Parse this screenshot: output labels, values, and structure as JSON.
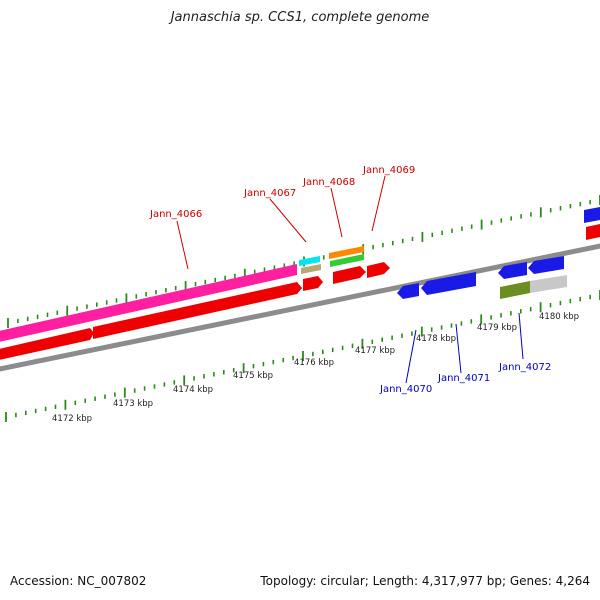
{
  "title": "Jannaschia sp. CCS1, complete genome",
  "footer": {
    "accession": "Accession: NC_007802",
    "summary": "Topology: circular; Length: 4,317,977 bp; Genes: 4,264"
  },
  "colors": {
    "backbone": "#8c8c8c",
    "tick": "#2a8a1a",
    "forward_label": "#cc0000",
    "reverse_label": "#0000bb"
  },
  "scale_labels": [
    "4172 kbp",
    "4173 kbp",
    "4174 kbp",
    "4175 kbp",
    "4176 kbp",
    "4177 kbp",
    "4178 kbp",
    "4179 kbp",
    "4180 kbp"
  ],
  "gene_labels_top": [
    "Jann_4066",
    "Jann_4067",
    "Jann_4068",
    "Jann_4069"
  ],
  "gene_labels_bottom": [
    "Jann_4070",
    "Jann_4071",
    "Jann_4072"
  ]
}
